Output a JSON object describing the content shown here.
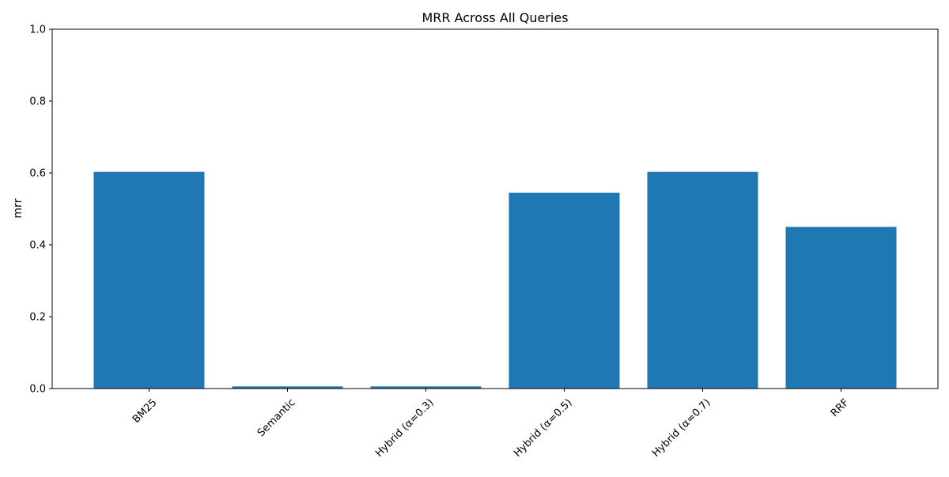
{
  "chart_data": {
    "type": "bar",
    "title": "MRR Across All Queries",
    "xlabel": "",
    "ylabel": "mrr",
    "categories": [
      "BM25",
      "Semantic",
      "Hybrid (α=0.3)",
      "Hybrid (α=0.5)",
      "Hybrid (α=0.7)",
      "RRF"
    ],
    "values": [
      0.603,
      0.006,
      0.006,
      0.545,
      0.603,
      0.45
    ],
    "ylim": [
      0,
      1.0
    ],
    "yticks": [
      "0.0",
      "0.2",
      "0.4",
      "0.6",
      "0.8",
      "1.0"
    ],
    "bar_color": "#1f77b4",
    "grid": false,
    "legend": "none"
  }
}
